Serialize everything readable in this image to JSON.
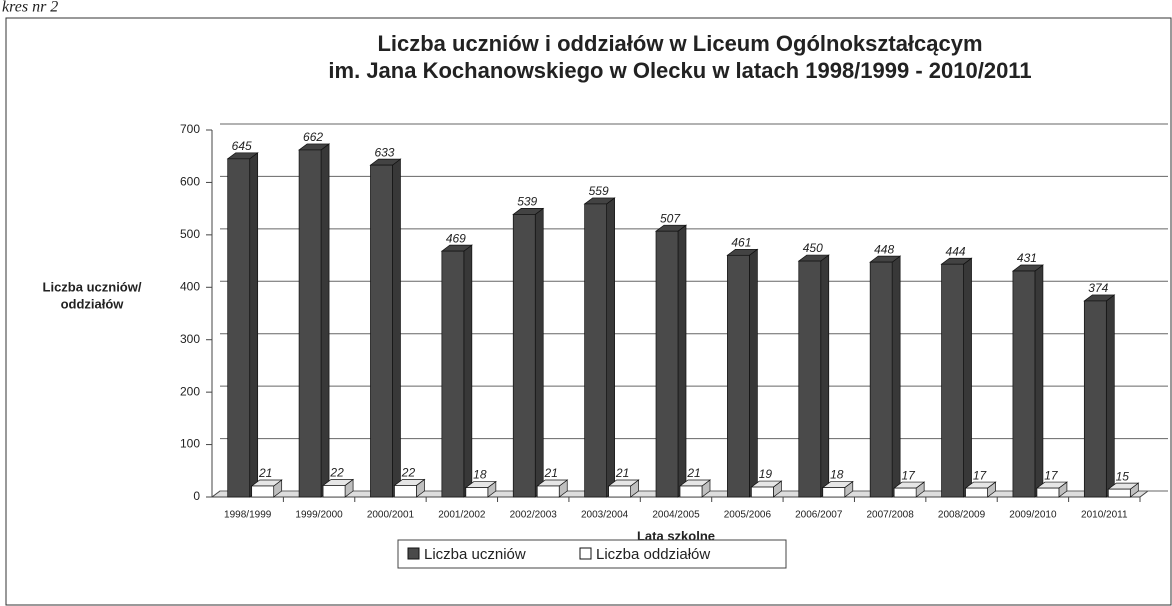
{
  "chart_data": {
    "type": "bar",
    "caption": "kres nr 2",
    "title": [
      "Liczba uczniów i  oddziałów w Liceum Ogólnokształcącym",
      "im. Jana Kochanowskiego w Olecku w latach 1998/1999 - 2010/2011"
    ],
    "y_label": [
      "Liczba uczniów/",
      "oddziałów"
    ],
    "x_label": "Lata szkolne",
    "categories": [
      "1998/1999",
      "1999/2000",
      "2000/2001",
      "2001/2002",
      "2002/2003",
      "2003/2004",
      "2004/2005",
      "2005/2006",
      "2006/2007",
      "2007/2008",
      "2008/2009",
      "2009/2010",
      "2010/2011"
    ],
    "series": [
      {
        "name": "Liczba uczniów",
        "color": "#4a4a4a",
        "values": [
          645,
          662,
          633,
          469,
          539,
          559,
          507,
          461,
          450,
          448,
          444,
          431,
          374
        ]
      },
      {
        "name": "Liczba oddziałów",
        "color": "#ffffff",
        "values": [
          21,
          22,
          22,
          18,
          21,
          21,
          21,
          19,
          18,
          17,
          17,
          17,
          15
        ]
      }
    ],
    "ylim": [
      0,
      700
    ],
    "yticks": [
      0,
      100,
      200,
      300,
      400,
      500,
      600,
      700
    ],
    "grid": true,
    "legend": "bottom"
  }
}
